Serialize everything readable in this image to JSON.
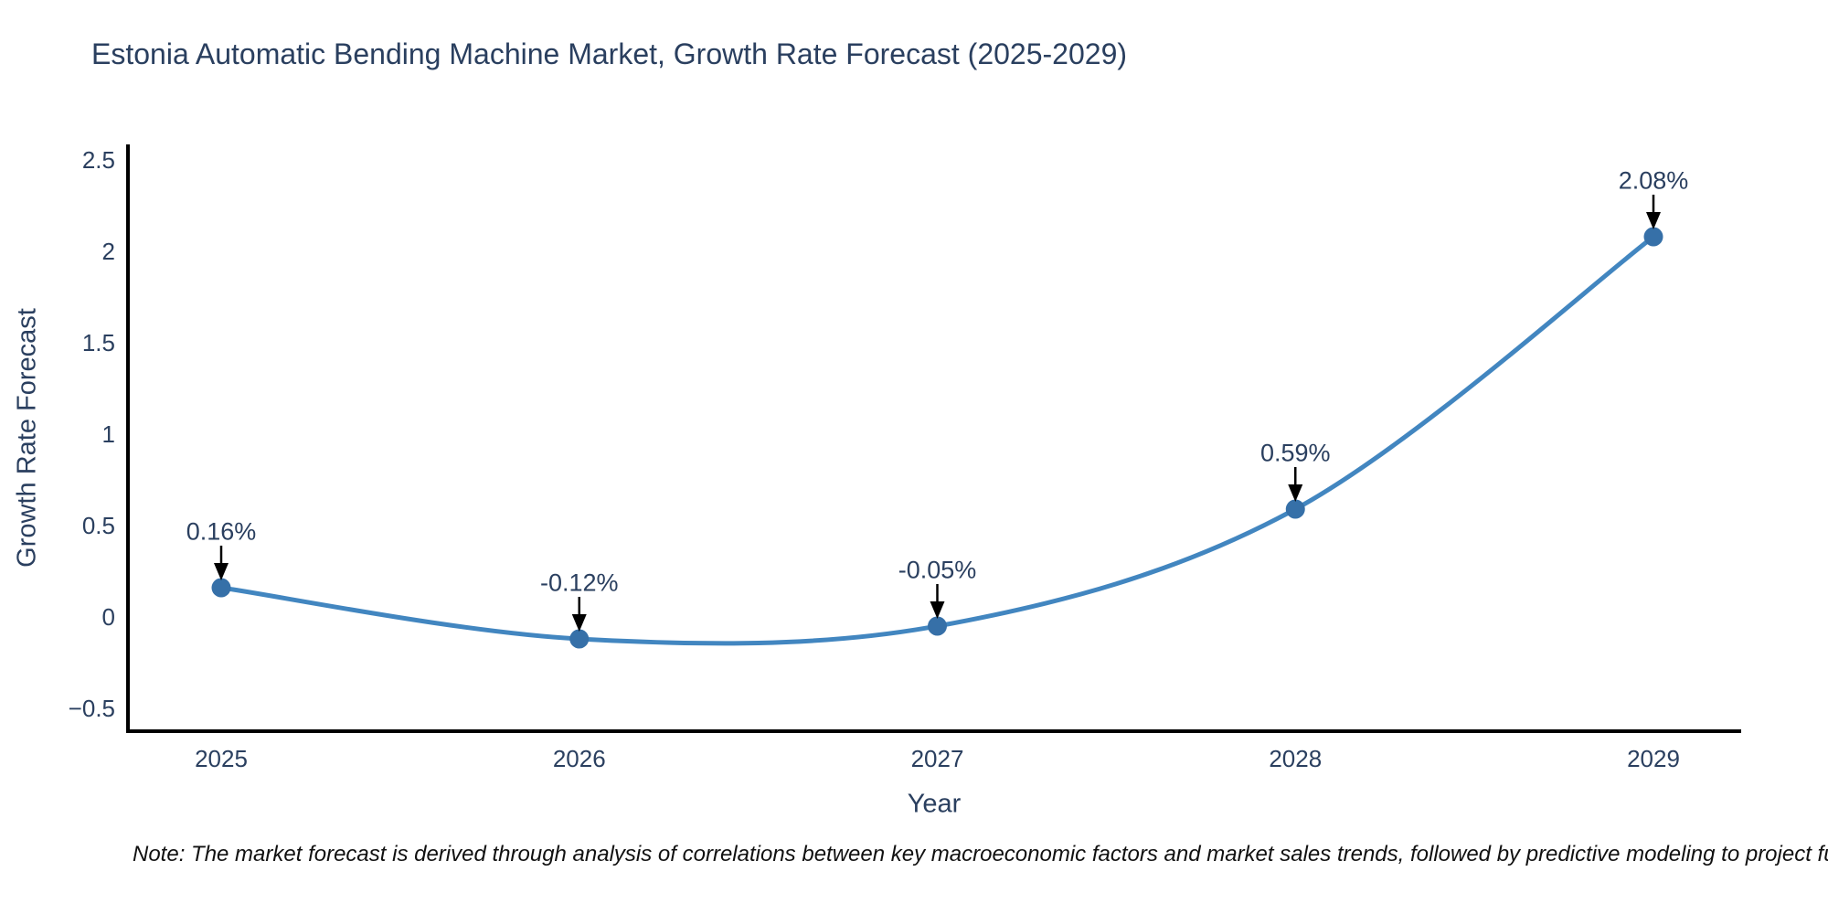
{
  "chart_data": {
    "type": "line",
    "line_shape": "spline",
    "title": "Estonia Automatic Bending Machine Market, Growth Rate Forecast (2025-2029)",
    "xlabel": "Year",
    "ylabel": "Growth Rate Forecast",
    "categories": [
      2025,
      2026,
      2027,
      2028,
      2029
    ],
    "values": [
      0.16,
      -0.12,
      -0.05,
      0.59,
      2.08
    ],
    "point_labels": [
      "0.16%",
      "-0.12%",
      "-0.05%",
      "0.59%",
      "2.08%"
    ],
    "xtick_labels": [
      "2025",
      "2026",
      "2027",
      "2028",
      "2029"
    ],
    "ytick_values": [
      2.5,
      2,
      1.5,
      1,
      0.5,
      0,
      -0.5
    ],
    "ytick_labels": [
      "2.5",
      "2",
      "1.5",
      "1",
      "0.5",
      "0",
      "−0.5"
    ],
    "ylim": [
      -0.625,
      2.585
    ],
    "grid": false,
    "legend": false,
    "annotation_style": "black-arrow-down-to-point"
  },
  "note": {
    "text": "Note: The market forecast is derived through analysis of correlations between key macroeconomic factors and market sales trends, followed by predictive modeling to project future sales."
  },
  "colors": {
    "line": "#4286c0",
    "marker": "#3670a8",
    "axis": "#000000",
    "arrow": "#000000",
    "text": "#2a3f5f",
    "note_text": "#111111",
    "background": "#ffffff"
  }
}
